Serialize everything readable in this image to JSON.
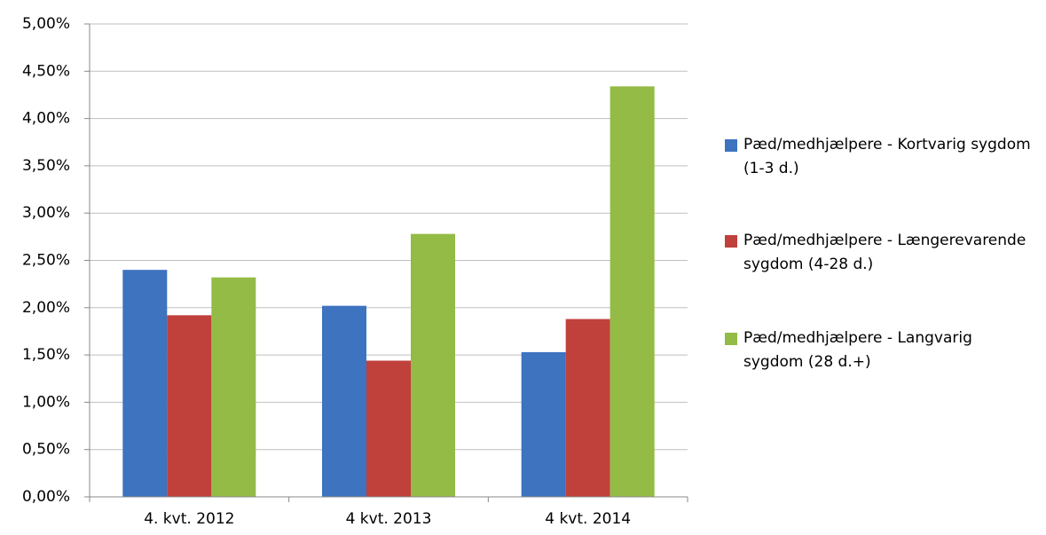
{
  "chart_data": {
    "type": "bar",
    "categories": [
      "4. kvt. 2012",
      "4 kvt. 2013",
      "4 kvt. 2014"
    ],
    "series": [
      {
        "name": "Pæd/medhjælpere - Kortvarig sygdom (1-3 d.)",
        "color": "#3d73bf",
        "values": [
          2.4,
          2.02,
          1.53
        ]
      },
      {
        "name": "Pæd/medhjælpere - Længerevarende sygdom (4-28 d.)",
        "color": "#c0403c",
        "values": [
          1.92,
          1.44,
          1.88
        ]
      },
      {
        "name": "Pæd/medhjælpere - Langvarig sygdom (28 d.+)",
        "color": "#93bb45",
        "values": [
          2.32,
          2.78,
          4.34
        ]
      }
    ],
    "ylim": [
      0,
      5
    ],
    "yticks": [
      {
        "value": 0,
        "label": "0,00%"
      },
      {
        "value": 0.5,
        "label": "0,50%"
      },
      {
        "value": 1,
        "label": "1,00%"
      },
      {
        "value": 1.5,
        "label": "1,50%"
      },
      {
        "value": 2,
        "label": "2,00%"
      },
      {
        "value": 2.5,
        "label": "2,50%"
      },
      {
        "value": 3,
        "label": "3,00%"
      },
      {
        "value": 3.5,
        "label": "3,50%"
      },
      {
        "value": 4,
        "label": "4,00%"
      },
      {
        "value": 4.5,
        "label": "4,50%"
      },
      {
        "value": 5,
        "label": "5,00%"
      }
    ],
    "grid": true,
    "legend": "right"
  }
}
